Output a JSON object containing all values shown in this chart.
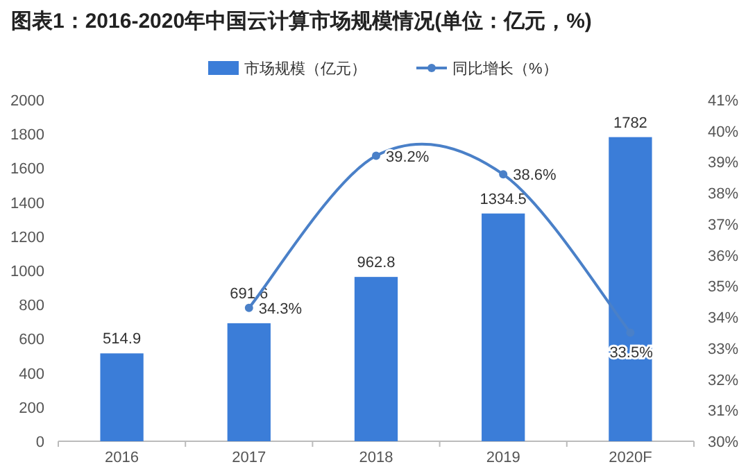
{
  "chart_data": {
    "type": "bar",
    "title": "图表1：2016-2020年中国云计算市场规模情况(单位：亿元，%)",
    "categories": [
      "2016",
      "2017",
      "2018",
      "2019",
      "2020F"
    ],
    "series": [
      {
        "name": "市场规模（亿元）",
        "color": "#3b7dd8",
        "values": [
          514.9,
          691.6,
          962.8,
          1334.5,
          1782
        ]
      },
      {
        "name": "同比增长（%）",
        "type": "line",
        "axis": "y2",
        "color": "#4a80c8",
        "marker": "circle",
        "values": [
          null,
          34.3,
          39.2,
          38.6,
          33.5
        ],
        "value_labels": [
          null,
          "34.3%",
          "39.2%",
          "38.6%",
          "33.5%"
        ]
      }
    ],
    "data_labels": true,
    "ylim": [
      0,
      2000
    ],
    "yticks": [
      0,
      200,
      400,
      600,
      800,
      1000,
      1200,
      1400,
      1600,
      1800,
      2000
    ],
    "y2lim": [
      30,
      41
    ],
    "y2ticks": [
      {
        "value": 30,
        "label": "30%"
      },
      {
        "value": 31,
        "label": "31%"
      },
      {
        "value": 32,
        "label": "32%"
      },
      {
        "value": 33,
        "label": "33%"
      },
      {
        "value": 34,
        "label": "34%"
      },
      {
        "value": 35,
        "label": "35%"
      },
      {
        "value": 36,
        "label": "36%"
      },
      {
        "value": 37,
        "label": "37%"
      },
      {
        "value": 38,
        "label": "38%"
      },
      {
        "value": 39,
        "label": "39%"
      },
      {
        "value": 40,
        "label": "40%"
      },
      {
        "value": 41,
        "label": "41%"
      }
    ],
    "legend": "top"
  }
}
